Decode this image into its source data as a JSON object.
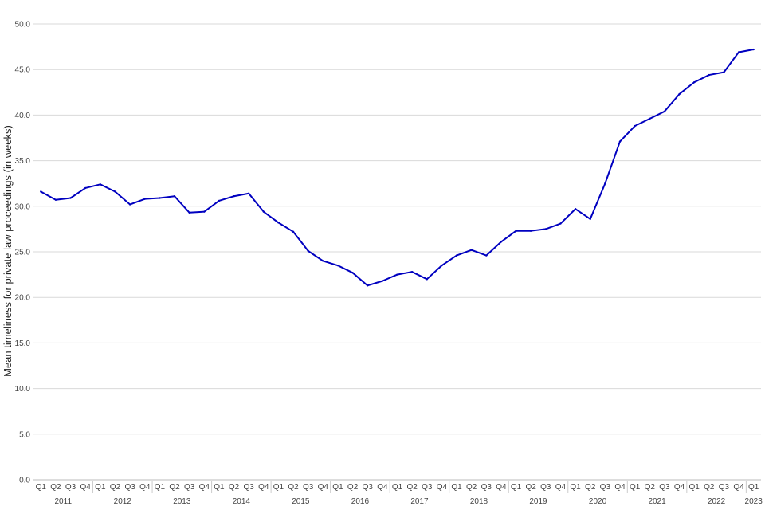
{
  "chart_data": {
    "type": "line",
    "ylabel": "Mean timeliness for private law proceedings (in weeks)",
    "xlabel": "",
    "ylim": [
      0,
      50
    ],
    "yticks": [
      "0.0",
      "5.0",
      "10.0",
      "15.0",
      "20.0",
      "25.0",
      "30.0",
      "35.0",
      "40.0",
      "45.0",
      "50.0"
    ],
    "years": [
      "2011",
      "2012",
      "2013",
      "2014",
      "2015",
      "2016",
      "2017",
      "2018",
      "2019",
      "2020",
      "2021",
      "2022",
      "2023"
    ],
    "quarters": [
      "Q1",
      "Q2",
      "Q3",
      "Q4"
    ],
    "grid": true,
    "line_color": "#0000c0",
    "categories": [
      "2011 Q1",
      "2011 Q2",
      "2011 Q3",
      "2011 Q4",
      "2012 Q1",
      "2012 Q2",
      "2012 Q3",
      "2012 Q4",
      "2013 Q1",
      "2013 Q2",
      "2013 Q3",
      "2013 Q4",
      "2014 Q1",
      "2014 Q2",
      "2014 Q3",
      "2014 Q4",
      "2015 Q1",
      "2015 Q2",
      "2015 Q3",
      "2015 Q4",
      "2016 Q1",
      "2016 Q2",
      "2016 Q3",
      "2016 Q4",
      "2017 Q1",
      "2017 Q2",
      "2017 Q3",
      "2017 Q4",
      "2018 Q1",
      "2018 Q2",
      "2018 Q3",
      "2018 Q4",
      "2019 Q1",
      "2019 Q2",
      "2019 Q3",
      "2019 Q4",
      "2020 Q1",
      "2020 Q2",
      "2020 Q3",
      "2020 Q4",
      "2021 Q1",
      "2021 Q2",
      "2021 Q3",
      "2021 Q4",
      "2022 Q1",
      "2022 Q2",
      "2022 Q3",
      "2022 Q4",
      "2023 Q1"
    ],
    "values": [
      31.6,
      30.7,
      30.9,
      32.0,
      32.4,
      31.6,
      30.2,
      30.8,
      30.9,
      31.1,
      29.3,
      29.4,
      30.6,
      31.1,
      31.4,
      29.4,
      28.2,
      27.2,
      25.1,
      24.0,
      23.5,
      22.7,
      21.3,
      21.8,
      22.5,
      22.8,
      22.0,
      23.5,
      24.6,
      25.2,
      24.6,
      26.1,
      27.3,
      27.3,
      27.5,
      28.1,
      29.7,
      28.6,
      32.5,
      37.1,
      38.8,
      39.6,
      40.4,
      42.3,
      43.6,
      44.4,
      44.7,
      46.9,
      47.2
    ]
  }
}
